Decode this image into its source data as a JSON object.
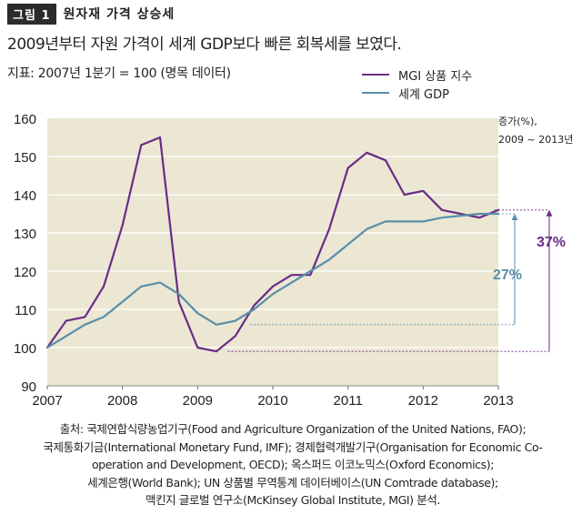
{
  "header": {
    "figure_label": "그림 1",
    "figure_title": "원자재 가격 상승세"
  },
  "subtitle": "2009년부터 자원 가격이 세계 GDP보다 빠른 회복세를 보였다.",
  "index_note": "지표: 2007년 1분기 = 100 (명목 데이터)",
  "growth_label": {
    "line1": "증가(%),",
    "line2": "2009 ~ 2013년"
  },
  "colors": {
    "mgi": "#6a2c86",
    "gdp": "#5a8fa8",
    "plot_bg": "#ebe7d3"
  },
  "chart_data": {
    "type": "line",
    "title": "",
    "xlabel": "",
    "ylabel": "",
    "xlim": [
      2007,
      2013
    ],
    "ylim": [
      90,
      160
    ],
    "x_ticks": [
      "2007",
      "2008",
      "2009",
      "2010",
      "2011",
      "2012",
      "2013"
    ],
    "y_ticks": [
      "90",
      "100",
      "110",
      "120",
      "130",
      "140",
      "150",
      "160"
    ],
    "series": [
      {
        "name": "MGI 상품 지수",
        "color": "#6a2c86",
        "x": [
          2007.0,
          2007.25,
          2007.5,
          2007.75,
          2008.0,
          2008.25,
          2008.5,
          2008.75,
          2009.0,
          2009.25,
          2009.5,
          2009.75,
          2010.0,
          2010.25,
          2010.5,
          2010.75,
          2011.0,
          2011.25,
          2011.5,
          2011.75,
          2012.0,
          2012.25,
          2012.5,
          2012.75,
          2013.0
        ],
        "values": [
          100,
          107,
          108,
          116,
          132,
          153,
          155,
          112,
          100,
          99,
          103,
          111,
          116,
          119,
          119,
          131,
          147,
          151,
          149,
          140,
          141,
          136,
          135,
          134,
          136
        ]
      },
      {
        "name": "세계 GDP",
        "color": "#5a8fa8",
        "x": [
          2007.0,
          2007.25,
          2007.5,
          2007.75,
          2008.0,
          2008.25,
          2008.5,
          2008.75,
          2009.0,
          2009.25,
          2009.5,
          2009.75,
          2010.0,
          2010.25,
          2010.5,
          2010.75,
          2011.0,
          2011.25,
          2011.5,
          2011.75,
          2012.0,
          2012.25,
          2012.5,
          2012.75,
          2013.0
        ],
        "values": [
          100,
          103,
          106,
          108,
          112,
          116,
          117,
          114,
          109,
          106,
          107,
          110,
          114,
          117,
          120,
          123,
          127,
          131,
          133,
          133,
          133,
          134,
          134.5,
          135,
          135
        ]
      }
    ],
    "annotations": [
      {
        "label": "37%",
        "series": "MGI 상품 지수",
        "from": 99,
        "to": 136,
        "color": "#6a2c86"
      },
      {
        "label": "27%",
        "series": "세계 GDP",
        "from": 106,
        "to": 135,
        "color": "#5a8fa8"
      }
    ]
  },
  "source": [
    "출처: 국제연합식량농업기구(Food and Agriculture Organization of the United Nations, FAO);",
    "국제통화기금(International Monetary Fund, IMF); 경제협력개발기구(Organisation for Economic Co-",
    "operation and Development, OECD); 옥스퍼드 이코노믹스(Oxford Economics);",
    "세계은행(World Bank); UN 상품별 무역통계 데이터베이스(UN Comtrade database);",
    "맥킨지 글로벌 연구소(McKinsey Global Institute, MGI) 분석."
  ]
}
